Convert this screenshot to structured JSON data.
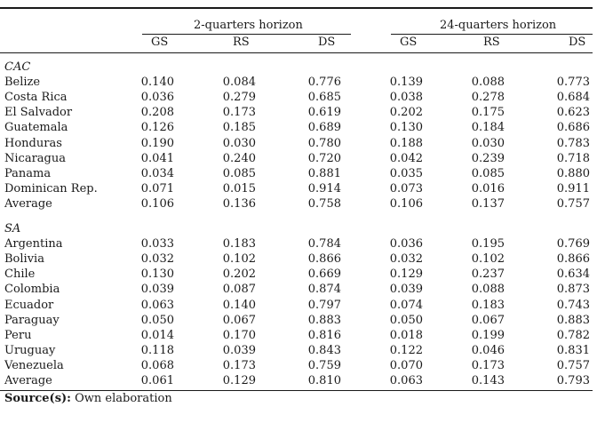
{
  "table": {
    "group_headers": [
      "2-quarters horizon",
      "24-quarters horizon"
    ],
    "columns": [
      "GS",
      "RS",
      "DS",
      "GS",
      "RS",
      "DS"
    ],
    "sections": [
      {
        "title": "CAC",
        "rows": [
          {
            "name": "Belize",
            "values": [
              "0.140",
              "0.084",
              "0.776",
              "0.139",
              "0.088",
              "0.773"
            ]
          },
          {
            "name": "Costa Rica",
            "values": [
              "0.036",
              "0.279",
              "0.685",
              "0.038",
              "0.278",
              "0.684"
            ]
          },
          {
            "name": "El Salvador",
            "values": [
              "0.208",
              "0.173",
              "0.619",
              "0.202",
              "0.175",
              "0.623"
            ]
          },
          {
            "name": "Guatemala",
            "values": [
              "0.126",
              "0.185",
              "0.689",
              "0.130",
              "0.184",
              "0.686"
            ]
          },
          {
            "name": "Honduras",
            "values": [
              "0.190",
              "0.030",
              "0.780",
              "0.188",
              "0.030",
              "0.783"
            ]
          },
          {
            "name": "Nicaragua",
            "values": [
              "0.041",
              "0.240",
              "0.720",
              "0.042",
              "0.239",
              "0.718"
            ]
          },
          {
            "name": "Panama",
            "values": [
              "0.034",
              "0.085",
              "0.881",
              "0.035",
              "0.085",
              "0.880"
            ]
          },
          {
            "name": "Dominican Rep.",
            "values": [
              "0.071",
              "0.015",
              "0.914",
              "0.073",
              "0.016",
              "0.911"
            ]
          },
          {
            "name": "Average",
            "values": [
              "0.106",
              "0.136",
              "0.758",
              "0.106",
              "0.137",
              "0.757"
            ]
          }
        ]
      },
      {
        "title": "SA",
        "rows": [
          {
            "name": "Argentina",
            "values": [
              "0.033",
              "0.183",
              "0.784",
              "0.036",
              "0.195",
              "0.769"
            ]
          },
          {
            "name": "Bolivia",
            "values": [
              "0.032",
              "0.102",
              "0.866",
              "0.032",
              "0.102",
              "0.866"
            ]
          },
          {
            "name": "Chile",
            "values": [
              "0.130",
              "0.202",
              "0.669",
              "0.129",
              "0.237",
              "0.634"
            ]
          },
          {
            "name": "Colombia",
            "values": [
              "0.039",
              "0.087",
              "0.874",
              "0.039",
              "0.088",
              "0.873"
            ]
          },
          {
            "name": "Ecuador",
            "values": [
              "0.063",
              "0.140",
              "0.797",
              "0.074",
              "0.183",
              "0.743"
            ]
          },
          {
            "name": "Paraguay",
            "values": [
              "0.050",
              "0.067",
              "0.883",
              "0.050",
              "0.067",
              "0.883"
            ]
          },
          {
            "name": "Peru",
            "values": [
              "0.014",
              "0.170",
              "0.816",
              "0.018",
              "0.199",
              "0.782"
            ]
          },
          {
            "name": "Uruguay",
            "values": [
              "0.118",
              "0.039",
              "0.843",
              "0.122",
              "0.046",
              "0.831"
            ]
          },
          {
            "name": "Venezuela",
            "values": [
              "0.068",
              "0.173",
              "0.759",
              "0.070",
              "0.173",
              "0.757"
            ]
          },
          {
            "name": "Average",
            "values": [
              "0.061",
              "0.129",
              "0.810",
              "0.063",
              "0.143",
              "0.793"
            ]
          }
        ]
      }
    ]
  },
  "source": {
    "label": "Source(s):",
    "text": " Own elaboration"
  }
}
